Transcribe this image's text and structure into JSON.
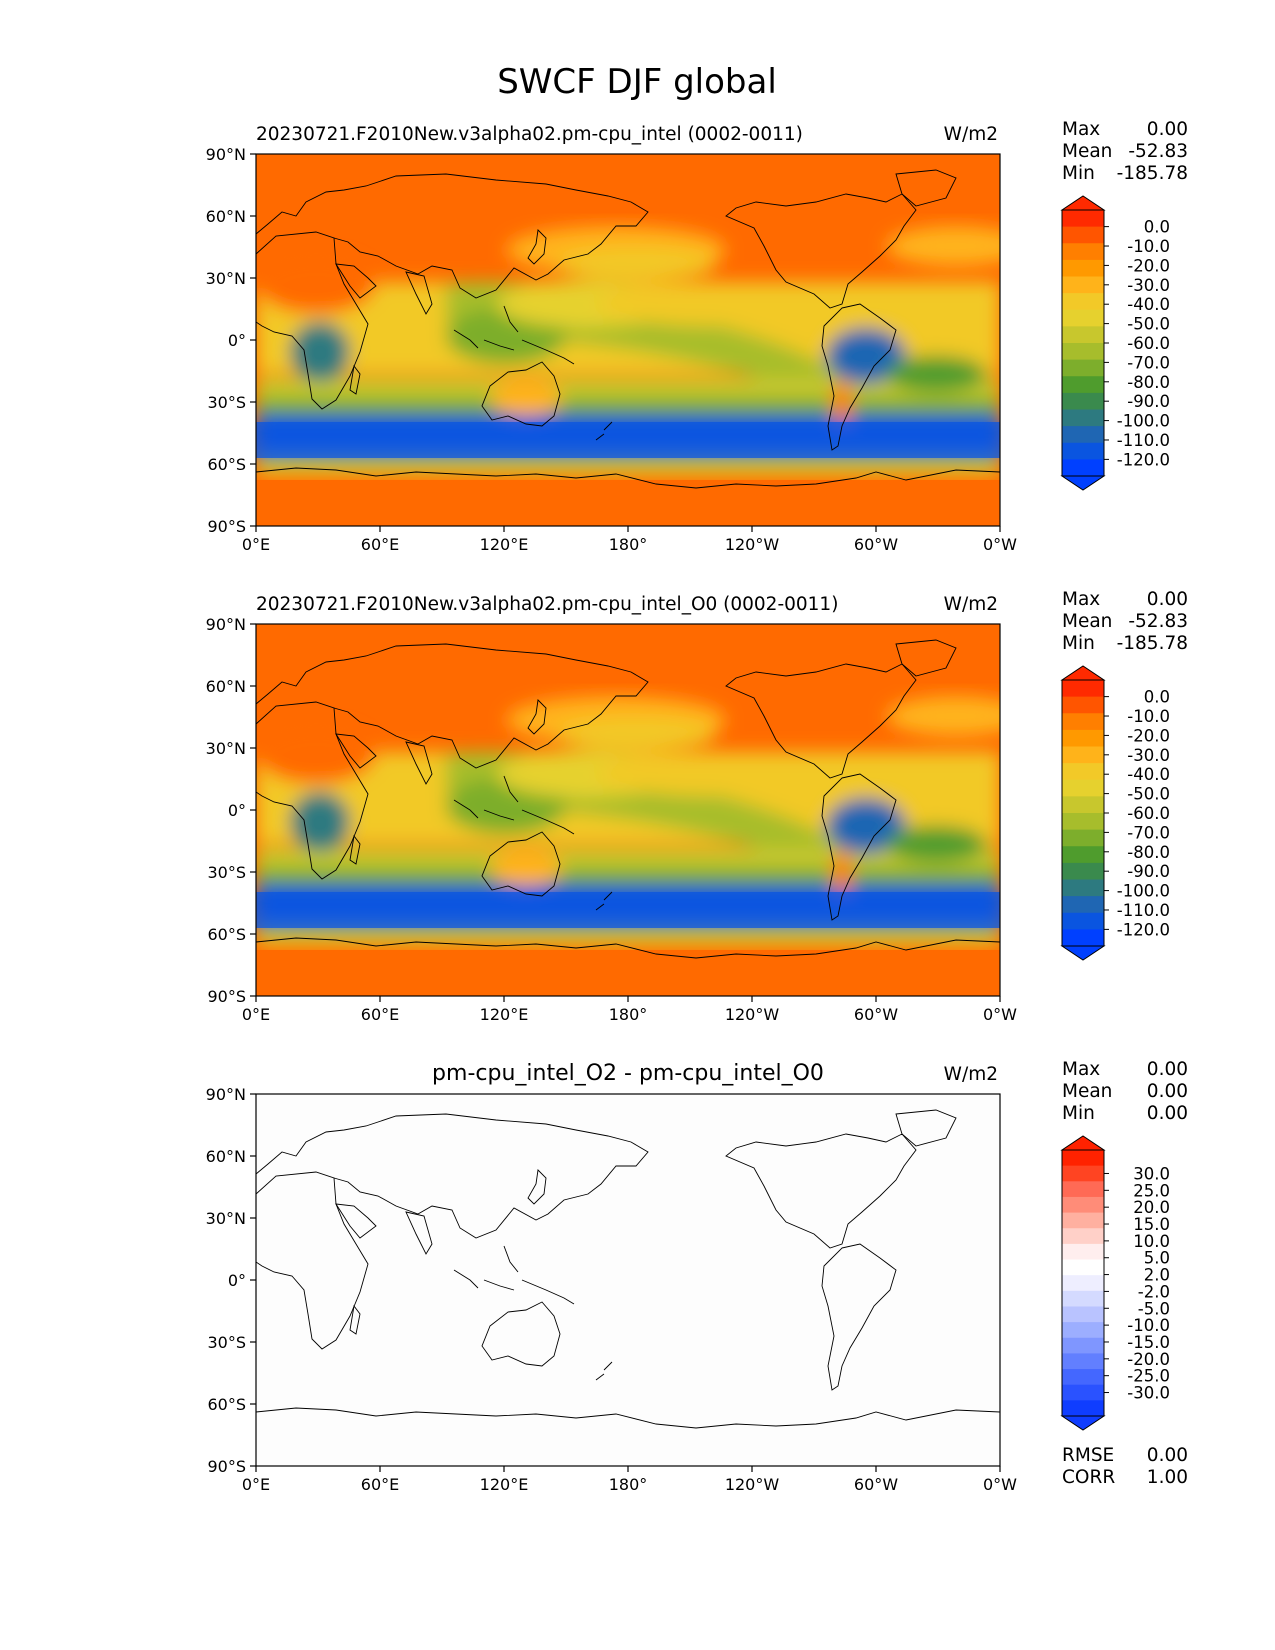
{
  "figure": {
    "title": "SWCF DJF global"
  },
  "axes": {
    "lat_ticks": [
      "90°N",
      "60°N",
      "30°N",
      "0°",
      "30°S",
      "60°S",
      "90°S"
    ],
    "lon_ticks": [
      "0°E",
      "60°E",
      "120°E",
      "180°",
      "120°W",
      "60°W",
      "0°W"
    ]
  },
  "colors": {
    "test_colorbar": [
      "#ff2a00",
      "#ff5500",
      "#ff7f00",
      "#ff9900",
      "#ffb31a",
      "#f2c928",
      "#e6d12e",
      "#c8c72d",
      "#a7bd2c",
      "#7dae2c",
      "#4f9c2d",
      "#3a8a4d",
      "#2d7a80",
      "#1f66b3",
      "#0a55e0",
      "#0040ff"
    ],
    "diff_colorbar": [
      "#ff2200",
      "#ff4422",
      "#ff6a55",
      "#ff8c78",
      "#ffb0a0",
      "#ffd0c8",
      "#ffeeee",
      "#ffffff",
      "#eeeeff",
      "#d4daff",
      "#b9c3ff",
      "#9caeff",
      "#7f96ff",
      "#627fff",
      "#4467ff",
      "#2a52ff",
      "#0f3dff"
    ],
    "coast": "#000000"
  },
  "chart_data": [
    {
      "type": "heatmap",
      "title": "20230721.F2010New.v3alpha02.pm-cpu_intel (0002-0011)",
      "units": "W/m2",
      "stats": {
        "max_label": "Max",
        "max": "0.00",
        "mean_label": "Mean",
        "mean": "-52.83",
        "min_label": "Min",
        "min": "-185.78"
      },
      "colorbar_levels": [
        "0.0",
        "-10.0",
        "-20.0",
        "-30.0",
        "-40.0",
        "-50.0",
        "-60.0",
        "-70.0",
        "-80.0",
        "-90.0",
        "-100.0",
        "-110.0",
        "-120.0"
      ],
      "xlim": [
        0,
        360
      ],
      "ylim": [
        -90,
        90
      ]
    },
    {
      "type": "heatmap",
      "title": "20230721.F2010New.v3alpha02.pm-cpu_intel_O0 (0002-0011)",
      "units": "W/m2",
      "stats": {
        "max_label": "Max",
        "max": "0.00",
        "mean_label": "Mean",
        "mean": "-52.83",
        "min_label": "Min",
        "min": "-185.78"
      },
      "colorbar_levels": [
        "0.0",
        "-10.0",
        "-20.0",
        "-30.0",
        "-40.0",
        "-50.0",
        "-60.0",
        "-70.0",
        "-80.0",
        "-90.0",
        "-100.0",
        "-110.0",
        "-120.0"
      ],
      "xlim": [
        0,
        360
      ],
      "ylim": [
        -90,
        90
      ]
    },
    {
      "type": "heatmap",
      "title": "pm-cpu_intel_O2 - pm-cpu_intel_O0",
      "units": "W/m2",
      "stats": {
        "max_label": "Max",
        "max": "0.00",
        "mean_label": "Mean",
        "mean": "0.00",
        "min_label": "Min",
        "min": "0.00"
      },
      "colorbar_levels": [
        "30.0",
        "25.0",
        "20.0",
        "15.0",
        "10.0",
        "5.0",
        "2.0",
        "-2.0",
        "-5.0",
        "-10.0",
        "-15.0",
        "-20.0",
        "-25.0",
        "-30.0"
      ],
      "extra_stats": {
        "rmse_label": "RMSE",
        "rmse": "0.00",
        "corr_label": "CORR",
        "corr": "1.00"
      },
      "xlim": [
        0,
        360
      ],
      "ylim": [
        -90,
        90
      ]
    }
  ]
}
